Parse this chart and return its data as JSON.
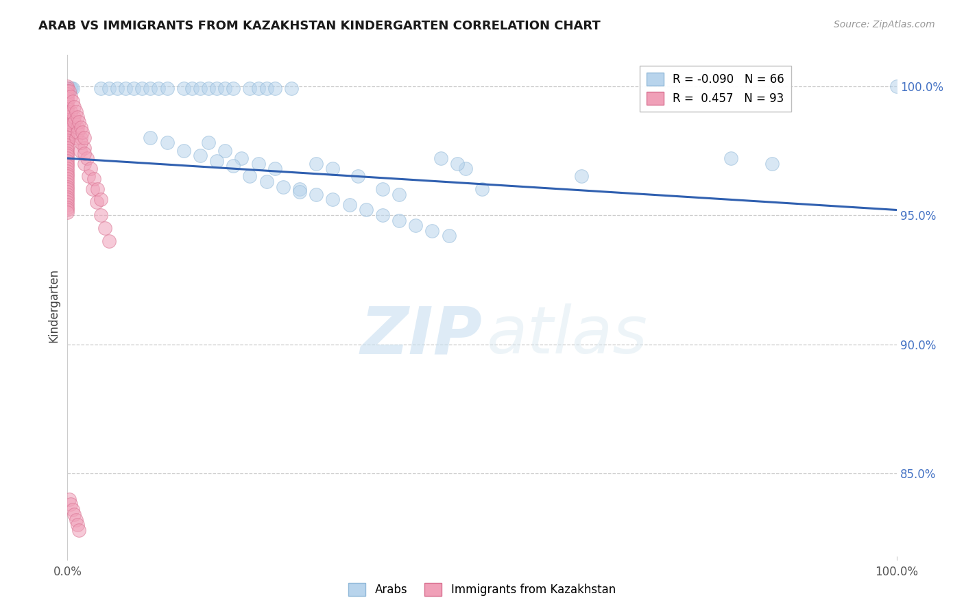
{
  "title": "ARAB VS IMMIGRANTS FROM KAZAKHSTAN KINDERGARTEN CORRELATION CHART",
  "source": "Source: ZipAtlas.com",
  "ylabel": "Kindergarten",
  "y_ticks": [
    0.85,
    0.9,
    0.95,
    1.0
  ],
  "y_tick_labels": [
    "85.0%",
    "90.0%",
    "95.0%",
    "100.0%"
  ],
  "x_lim": [
    0.0,
    1.0
  ],
  "y_lim": [
    0.818,
    1.012
  ],
  "legend_label_arab": "Arabs",
  "legend_label_kaz": "Immigrants from Kazakhstan",
  "blue_color": "#b8d4ec",
  "pink_color": "#f0a0b8",
  "blue_edge": "#90b8d8",
  "pink_edge": "#d87090",
  "trend_color": "#3060b0",
  "grid_color": "#cccccc",
  "right_tick_color": "#4472c4",
  "blue_scatter_x": [
    0.002,
    0.003,
    0.004,
    0.005,
    0.006,
    0.04,
    0.05,
    0.06,
    0.07,
    0.08,
    0.09,
    0.1,
    0.11,
    0.12,
    0.14,
    0.15,
    0.16,
    0.17,
    0.18,
    0.19,
    0.2,
    0.22,
    0.23,
    0.24,
    0.25,
    0.27,
    0.17,
    0.19,
    0.21,
    0.23,
    0.25,
    0.3,
    0.32,
    0.35,
    0.38,
    0.4,
    0.48,
    0.5,
    0.45,
    0.47,
    0.62,
    0.8,
    0.85,
    1.0,
    0.28,
    0.3,
    0.32,
    0.34,
    0.36,
    0.38,
    0.4,
    0.42,
    0.44,
    0.46,
    0.22,
    0.24,
    0.26,
    0.28,
    0.14,
    0.16,
    0.18,
    0.2,
    0.1,
    0.12
  ],
  "blue_scatter_y": [
    0.999,
    0.999,
    0.999,
    0.999,
    0.999,
    0.999,
    0.999,
    0.999,
    0.999,
    0.999,
    0.999,
    0.999,
    0.999,
    0.999,
    0.999,
    0.999,
    0.999,
    0.999,
    0.999,
    0.999,
    0.999,
    0.999,
    0.999,
    0.999,
    0.999,
    0.999,
    0.978,
    0.975,
    0.972,
    0.97,
    0.968,
    0.97,
    0.968,
    0.965,
    0.96,
    0.958,
    0.968,
    0.96,
    0.972,
    0.97,
    0.965,
    0.972,
    0.97,
    1.0,
    0.96,
    0.958,
    0.956,
    0.954,
    0.952,
    0.95,
    0.948,
    0.946,
    0.944,
    0.942,
    0.965,
    0.963,
    0.961,
    0.959,
    0.975,
    0.973,
    0.971,
    0.969,
    0.98,
    0.978
  ],
  "pink_scatter_x": [
    0.0,
    0.0,
    0.0,
    0.0,
    0.0,
    0.0,
    0.0,
    0.0,
    0.0,
    0.0,
    0.0,
    0.0,
    0.0,
    0.0,
    0.0,
    0.0,
    0.0,
    0.0,
    0.0,
    0.0,
    0.0,
    0.0,
    0.0,
    0.0,
    0.0,
    0.0,
    0.0,
    0.0,
    0.0,
    0.0,
    0.0,
    0.0,
    0.0,
    0.0,
    0.0,
    0.0,
    0.0,
    0.0,
    0.0,
    0.0,
    0.0,
    0.0,
    0.0,
    0.0,
    0.0,
    0.0,
    0.0,
    0.0,
    0.0,
    0.0,
    0.005,
    0.01,
    0.015,
    0.02,
    0.025,
    0.03,
    0.035,
    0.04,
    0.045,
    0.05,
    0.008,
    0.012,
    0.016,
    0.02,
    0.024,
    0.028,
    0.032,
    0.036,
    0.04,
    0.004,
    0.008,
    0.012,
    0.016,
    0.02,
    0.002,
    0.004,
    0.006,
    0.008,
    0.01,
    0.012,
    0.014,
    0.016,
    0.018,
    0.02,
    0.002,
    0.004,
    0.006,
    0.008,
    0.01,
    0.012,
    0.014
  ],
  "pink_scatter_y": [
    1.0,
    0.999,
    0.998,
    0.997,
    0.996,
    0.995,
    0.994,
    0.993,
    0.992,
    0.991,
    0.99,
    0.989,
    0.988,
    0.987,
    0.986,
    0.985,
    0.984,
    0.983,
    0.982,
    0.981,
    0.98,
    0.979,
    0.978,
    0.977,
    0.976,
    0.975,
    0.974,
    0.973,
    0.972,
    0.971,
    0.97,
    0.969,
    0.968,
    0.967,
    0.966,
    0.965,
    0.964,
    0.963,
    0.962,
    0.961,
    0.96,
    0.959,
    0.958,
    0.957,
    0.956,
    0.955,
    0.954,
    0.953,
    0.952,
    0.951,
    0.985,
    0.98,
    0.975,
    0.97,
    0.965,
    0.96,
    0.955,
    0.95,
    0.945,
    0.94,
    0.988,
    0.984,
    0.98,
    0.976,
    0.972,
    0.968,
    0.964,
    0.96,
    0.956,
    0.99,
    0.986,
    0.982,
    0.978,
    0.974,
    0.998,
    0.996,
    0.994,
    0.992,
    0.99,
    0.988,
    0.986,
    0.984,
    0.982,
    0.98,
    0.84,
    0.838,
    0.836,
    0.834,
    0.832,
    0.83,
    0.828
  ],
  "trend_x": [
    0.0,
    1.0
  ],
  "trend_y_start": 0.972,
  "trend_y_end": 0.952
}
